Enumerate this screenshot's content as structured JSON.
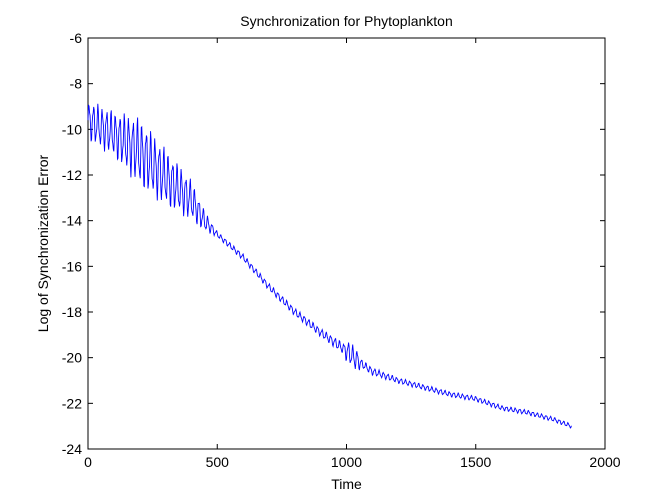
{
  "chart_data": {
    "type": "line",
    "title": "Synchronization for Phytoplankton",
    "xlabel": "Time",
    "ylabel": "Log of Synchronization Error",
    "xlim": [
      0,
      2000
    ],
    "ylim": [
      -24,
      -6
    ],
    "xticks": [
      0,
      500,
      1000,
      1500,
      2000
    ],
    "yticks": [
      -24,
      -22,
      -20,
      -18,
      -16,
      -14,
      -12,
      -10,
      -8,
      -6
    ],
    "grid": false,
    "series": [
      {
        "color": "#0000ff",
        "trend": [
          [
            0,
            -9.6
          ],
          [
            100,
            -10.2
          ],
          [
            200,
            -11.0
          ],
          [
            300,
            -12.1
          ],
          [
            400,
            -13.1
          ],
          [
            450,
            -14.0
          ],
          [
            500,
            -14.6
          ],
          [
            600,
            -15.6
          ],
          [
            700,
            -16.9
          ],
          [
            800,
            -18.0
          ],
          [
            900,
            -18.9
          ],
          [
            1000,
            -19.7
          ],
          [
            1050,
            -20.2
          ],
          [
            1100,
            -20.6
          ],
          [
            1200,
            -21.0
          ],
          [
            1300,
            -21.3
          ],
          [
            1400,
            -21.6
          ],
          [
            1500,
            -21.8
          ],
          [
            1600,
            -22.2
          ],
          [
            1700,
            -22.4
          ],
          [
            1800,
            -22.7
          ],
          [
            1870,
            -23.0
          ]
        ],
        "oscillation_amplitude": [
          [
            0,
            0.7
          ],
          [
            100,
            0.8
          ],
          [
            200,
            1.2
          ],
          [
            300,
            1.0
          ],
          [
            400,
            0.7
          ],
          [
            470,
            0.25
          ],
          [
            500,
            0.1
          ],
          [
            900,
            0.15
          ],
          [
            990,
            0.2
          ],
          [
            1000,
            0.4
          ],
          [
            1040,
            0.4
          ],
          [
            1060,
            0.15
          ],
          [
            1200,
            0.1
          ],
          [
            1870,
            0.08
          ]
        ],
        "oscillation_period": 17
      }
    ]
  }
}
